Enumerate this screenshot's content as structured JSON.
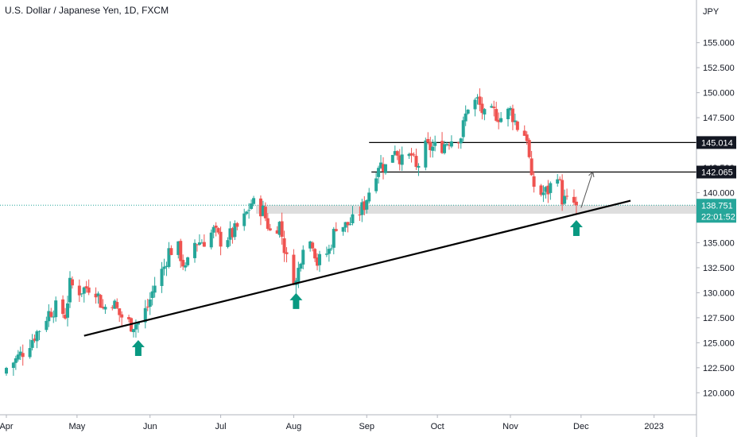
{
  "header": {
    "title": "U.S. Dollar / Japanese Yen, 1D, FXCM"
  },
  "chart_data": {
    "type": "candlestick",
    "currency_label": "JPY",
    "ylim": [
      117.8,
      157.2
    ],
    "y_ticks": [
      120,
      122.5,
      125,
      127.5,
      130,
      132.5,
      135,
      137.5,
      140,
      142.5,
      145,
      147.5,
      150,
      152.5,
      155
    ],
    "y_tick_labels": [
      "120.000",
      "122.500",
      "125.000",
      "127.500",
      "130.000",
      "132.500",
      "135.000",
      "137.500",
      "140.000",
      "142.500",
      "145.000",
      "147.500",
      "150.000",
      "152.500",
      "155.000"
    ],
    "x_labels": [
      {
        "label": "Apr",
        "date": "2022-04-01"
      },
      {
        "label": "May",
        "date": "2022-05-01"
      },
      {
        "label": "Jun",
        "date": "2022-06-01"
      },
      {
        "label": "Jul",
        "date": "2022-07-01"
      },
      {
        "label": "Aug",
        "date": "2022-08-01"
      },
      {
        "label": "Sep",
        "date": "2022-09-01"
      },
      {
        "label": "Oct",
        "date": "2022-10-01"
      },
      {
        "label": "Nov",
        "date": "2022-11-01"
      },
      {
        "label": "Dec",
        "date": "2022-12-01"
      },
      {
        "label": "2023",
        "date": "2023-01-01"
      }
    ],
    "x_range": [
      "2022-04-01",
      "2023-01-19"
    ],
    "close_series": [
      {
        "date": "2022-04-01",
        "close": 122.5
      },
      {
        "date": "2022-04-05",
        "close": 123.3
      },
      {
        "date": "2022-04-08",
        "close": 124.1
      },
      {
        "date": "2022-04-12",
        "close": 125.4
      },
      {
        "date": "2022-04-15",
        "close": 126.4
      },
      {
        "date": "2022-04-19",
        "close": 128.0
      },
      {
        "date": "2022-04-22",
        "close": 128.5
      },
      {
        "date": "2022-04-26",
        "close": 127.8
      },
      {
        "date": "2022-04-28",
        "close": 130.8
      },
      {
        "date": "2022-05-02",
        "close": 130.2
      },
      {
        "date": "2022-05-06",
        "close": 130.6
      },
      {
        "date": "2022-05-09",
        "close": 130.3
      },
      {
        "date": "2022-05-12",
        "close": 128.4
      },
      {
        "date": "2022-05-16",
        "close": 129.2
      },
      {
        "date": "2022-05-19",
        "close": 127.8
      },
      {
        "date": "2022-05-24",
        "close": 126.8
      },
      {
        "date": "2022-05-27",
        "close": 127.0
      },
      {
        "date": "2022-05-31",
        "close": 128.6
      },
      {
        "date": "2022-06-03",
        "close": 130.8
      },
      {
        "date": "2022-06-07",
        "close": 132.6
      },
      {
        "date": "2022-06-09",
        "close": 134.2
      },
      {
        "date": "2022-06-13",
        "close": 134.4
      },
      {
        "date": "2022-06-16",
        "close": 132.2
      },
      {
        "date": "2022-06-20",
        "close": 135.0
      },
      {
        "date": "2022-06-24",
        "close": 135.2
      },
      {
        "date": "2022-06-28",
        "close": 136.2
      },
      {
        "date": "2022-07-01",
        "close": 135.2
      },
      {
        "date": "2022-07-06",
        "close": 135.9
      },
      {
        "date": "2022-07-11",
        "close": 137.4
      },
      {
        "date": "2022-07-14",
        "close": 139.0
      },
      {
        "date": "2022-07-19",
        "close": 138.2
      },
      {
        "date": "2022-07-22",
        "close": 136.1
      },
      {
        "date": "2022-07-26",
        "close": 136.9
      },
      {
        "date": "2022-07-29",
        "close": 133.3
      },
      {
        "date": "2022-08-02",
        "close": 131.0
      },
      {
        "date": "2022-08-05",
        "close": 135.0
      },
      {
        "date": "2022-08-09",
        "close": 135.1
      },
      {
        "date": "2022-08-11",
        "close": 133.0
      },
      {
        "date": "2022-08-16",
        "close": 134.2
      },
      {
        "date": "2022-08-19",
        "close": 136.8
      },
      {
        "date": "2022-08-23",
        "close": 136.7
      },
      {
        "date": "2022-08-26",
        "close": 137.1
      },
      {
        "date": "2022-08-31",
        "close": 138.8
      },
      {
        "date": "2022-09-02",
        "close": 140.2
      },
      {
        "date": "2022-09-06",
        "close": 142.9
      },
      {
        "date": "2022-09-09",
        "close": 142.6
      },
      {
        "date": "2022-09-13",
        "close": 144.6
      },
      {
        "date": "2022-09-16",
        "close": 143.1
      },
      {
        "date": "2022-09-20",
        "close": 143.7
      },
      {
        "date": "2022-09-22",
        "close": 142.3
      },
      {
        "date": "2022-09-26",
        "close": 144.5
      },
      {
        "date": "2022-09-29",
        "close": 144.5
      },
      {
        "date": "2022-10-03",
        "close": 144.7
      },
      {
        "date": "2022-10-06",
        "close": 145.3
      },
      {
        "date": "2022-10-11",
        "close": 145.7
      },
      {
        "date": "2022-10-14",
        "close": 148.7
      },
      {
        "date": "2022-10-18",
        "close": 149.2
      },
      {
        "date": "2022-10-21",
        "close": 147.6
      },
      {
        "date": "2022-10-25",
        "close": 148.0
      },
      {
        "date": "2022-10-28",
        "close": 147.5
      },
      {
        "date": "2022-11-01",
        "close": 148.2
      },
      {
        "date": "2022-11-04",
        "close": 146.6
      },
      {
        "date": "2022-11-08",
        "close": 145.6
      },
      {
        "date": "2022-11-10",
        "close": 141.0
      },
      {
        "date": "2022-11-14",
        "close": 139.9
      },
      {
        "date": "2022-11-17",
        "close": 140.2
      },
      {
        "date": "2022-11-21",
        "close": 142.1
      },
      {
        "date": "2022-11-23",
        "close": 139.4
      },
      {
        "date": "2022-11-25",
        "close": 139.1
      },
      {
        "date": "2022-11-28",
        "close": 138.9
      },
      {
        "date": "2022-11-29",
        "close": 138.751
      }
    ],
    "horizontal_levels": [
      {
        "value": 145.014,
        "label": "145.014",
        "from_date": "2022-09-02"
      },
      {
        "value": 142.065,
        "label": "142.065",
        "from_date": "2022-09-03"
      }
    ],
    "support_zone": {
      "from": 137.9,
      "to": 138.751
    },
    "trendline": {
      "start": {
        "date": "2022-05-04",
        "price": 125.7
      },
      "end": {
        "date": "2022-12-22",
        "price": 139.2
      }
    },
    "projection_arrow": {
      "start": {
        "date": "2022-12-01",
        "price": 138.5
      },
      "end": {
        "date": "2022-12-06",
        "price": 142.1
      }
    },
    "support_arrows": [
      {
        "date": "2022-05-27",
        "price": 125.9
      },
      {
        "date": "2022-08-02",
        "price": 130.6
      },
      {
        "date": "2022-11-29",
        "price": 137.9
      }
    ],
    "last_price": {
      "value": 138.751,
      "label": "138.751",
      "countdown": "22:01:52"
    },
    "colors": {
      "up": "#26a69a",
      "down": "#ef5350",
      "arrow": "#089981",
      "line": "#000000",
      "zone": "#dedede",
      "last_price": "#26a69a"
    }
  }
}
